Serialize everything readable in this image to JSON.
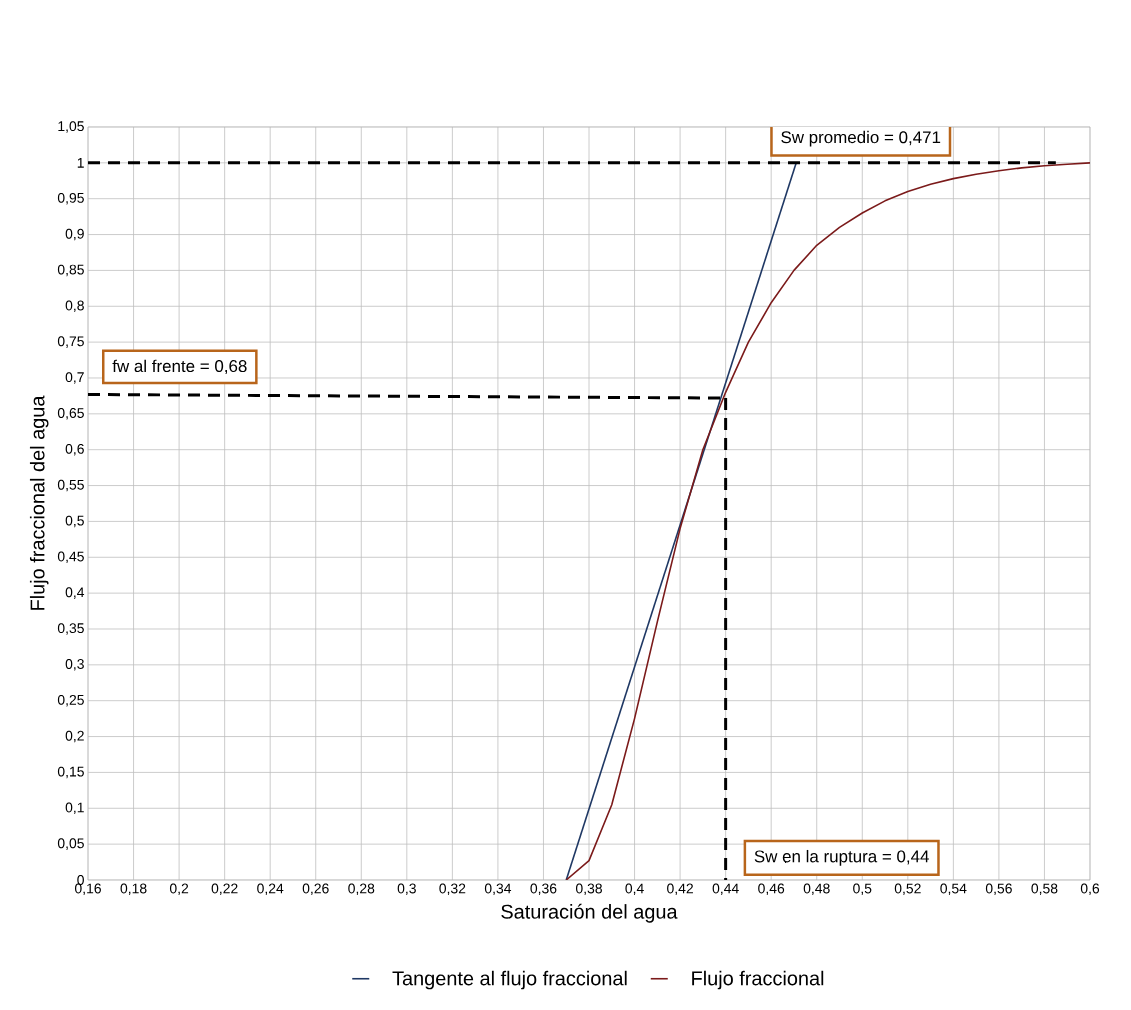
{
  "chart_data": {
    "type": "line",
    "xlabel": "Saturación del agua",
    "ylabel": "Flujo fraccional del agua",
    "xlim": [
      0.16,
      0.6
    ],
    "ylim": [
      0,
      1.05
    ],
    "xticks": [
      {
        "value": 0.16,
        "label": "0,16"
      },
      {
        "value": 0.18,
        "label": "0,18"
      },
      {
        "value": 0.2,
        "label": "0,2"
      },
      {
        "value": 0.22,
        "label": "0,22"
      },
      {
        "value": 0.24,
        "label": "0,24"
      },
      {
        "value": 0.26,
        "label": "0,26"
      },
      {
        "value": 0.28,
        "label": "0,28"
      },
      {
        "value": 0.3,
        "label": "0,3"
      },
      {
        "value": 0.32,
        "label": "0,32"
      },
      {
        "value": 0.34,
        "label": "0,34"
      },
      {
        "value": 0.36,
        "label": "0,36"
      },
      {
        "value": 0.38,
        "label": "0,38"
      },
      {
        "value": 0.4,
        "label": "0,4"
      },
      {
        "value": 0.42,
        "label": "0,42"
      },
      {
        "value": 0.44,
        "label": "0,44"
      },
      {
        "value": 0.46,
        "label": "0,46"
      },
      {
        "value": 0.48,
        "label": "0,48"
      },
      {
        "value": 0.5,
        "label": "0,5"
      },
      {
        "value": 0.52,
        "label": "0,52"
      },
      {
        "value": 0.54,
        "label": "0,54"
      },
      {
        "value": 0.56,
        "label": "0,56"
      },
      {
        "value": 0.58,
        "label": "0,58"
      },
      {
        "value": 0.6,
        "label": "0,6"
      }
    ],
    "yticks": [
      0,
      {
        "value": 0.05,
        "label": "0,05"
      },
      {
        "value": 0.1,
        "label": "0,1"
      },
      {
        "value": 0.15,
        "label": "0,15"
      },
      {
        "value": 0.2,
        "label": "0,2"
      },
      {
        "value": 0.25,
        "label": "0,25"
      },
      {
        "value": 0.3,
        "label": "0,3"
      },
      {
        "value": 0.35,
        "label": "0,35"
      },
      {
        "value": 0.4,
        "label": "0,4"
      },
      {
        "value": 0.45,
        "label": "0,45"
      },
      {
        "value": 0.5,
        "label": "0,5"
      },
      {
        "value": 0.55,
        "label": "0,55"
      },
      {
        "value": 0.6,
        "label": "0,6"
      },
      {
        "value": 0.65,
        "label": "0,65"
      },
      {
        "value": 0.7,
        "label": "0,7"
      },
      {
        "value": 0.75,
        "label": "0,75"
      },
      {
        "value": 0.8,
        "label": "0,8"
      },
      {
        "value": 0.85,
        "label": "0,85"
      },
      {
        "value": 0.9,
        "label": "0,9"
      },
      {
        "value": 0.95,
        "label": "0,95"
      },
      1,
      {
        "value": 1.05,
        "label": "1,05"
      }
    ],
    "grid": true,
    "legend": "bottom",
    "series": [
      {
        "name": "Tangente al flujo fraccional",
        "color": "#1f3864",
        "x": [
          0.37,
          0.471
        ],
        "values": [
          0,
          1
        ]
      },
      {
        "name": "Flujo fraccional",
        "color": "#7b1a1a",
        "x": [
          0.37,
          0.38,
          0.39,
          0.4,
          0.41,
          0.42,
          0.43,
          0.44,
          0.45,
          0.46,
          0.47,
          0.48,
          0.49,
          0.5,
          0.51,
          0.52,
          0.53,
          0.54,
          0.55,
          0.56,
          0.57,
          0.58,
          0.59,
          0.6
        ],
        "values": [
          0,
          0.027,
          0.105,
          0.225,
          0.36,
          0.49,
          0.6,
          0.68,
          0.75,
          0.805,
          0.85,
          0.885,
          0.91,
          0.93,
          0.947,
          0.96,
          0.97,
          0.978,
          0.984,
          0.989,
          0.993,
          0.996,
          0.998,
          1.0
        ]
      },
      {
        "color": "#000000",
        "line_style": "dashed",
        "x": [
          0.16,
          0.585
        ],
        "values": [
          1,
          1
        ]
      },
      {
        "color": "#000000",
        "line_style": "dashed",
        "x": [
          0.16,
          0.44
        ],
        "values": [
          0.677,
          0.672
        ]
      },
      {
        "color": "#000000",
        "line_style": "dashed",
        "x": [
          0.44,
          0.44
        ],
        "values": [
          0.672,
          0
        ]
      }
    ],
    "annotations": [
      {
        "text": "Sw promedio = 0,471",
        "x": 0.471,
        "y": 1
      },
      {
        "text": "fw al frente = 0,68",
        "x": 0.16,
        "y": 0.68
      },
      {
        "text": "Sw en la ruptura = 0,44",
        "x": 0.44,
        "y": 0
      }
    ]
  }
}
